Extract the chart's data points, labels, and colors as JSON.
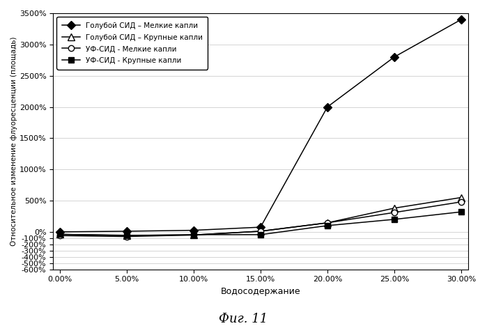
{
  "x_vals": [
    0.0,
    0.05,
    0.1,
    0.15,
    0.2,
    0.25,
    0.3
  ],
  "series": [
    {
      "label": "Голубой СИД – Мелкие капли",
      "y": [
        0.0,
        10.0,
        25.0,
        75.0,
        2000.0,
        2800.0,
        3400.0
      ],
      "marker": "D",
      "fillstyle": "full",
      "markersize": 6
    },
    {
      "label": "Голубой СИД – Крупные капли",
      "y": [
        -40.0,
        -55.0,
        -50.0,
        10.0,
        145.0,
        380.0,
        550.0
      ],
      "marker": "^",
      "fillstyle": "none",
      "markersize": 7
    },
    {
      "label": "УФ-СИД - Мелкие капли",
      "y": [
        -60.0,
        -75.0,
        -50.0,
        10.0,
        145.0,
        310.0,
        480.0
      ],
      "marker": "o",
      "fillstyle": "none",
      "markersize": 6
    },
    {
      "label": "УФ-СИД - Крупные капли",
      "y": [
        -40.0,
        -60.0,
        -45.0,
        -45.0,
        100.0,
        200.0,
        320.0
      ],
      "marker": "s",
      "fillstyle": "full",
      "markersize": 6
    }
  ],
  "xlabel": "Водосодержание",
  "ylabel": "Относительное изменение флуоресценции (площадь)",
  "fig_title": "Фиг. 11",
  "ylim_min": -600,
  "ylim_max": 3500,
  "ytick_vals": [
    -600,
    -500,
    -400,
    -300,
    -200,
    -100,
    0,
    500,
    1000,
    1500,
    2000,
    2500,
    3000,
    3500
  ],
  "xtick_vals": [
    0.0,
    0.05,
    0.1,
    0.15,
    0.2,
    0.25,
    0.3
  ],
  "background_color": "#ffffff",
  "linewidth": 1.1,
  "grid_color": "#aaaaaa",
  "grid_alpha": 0.7,
  "font_size_ticks": 8,
  "font_size_xlabel": 9,
  "font_size_ylabel": 7.5,
  "font_size_legend": 7.5,
  "font_size_title": 13
}
